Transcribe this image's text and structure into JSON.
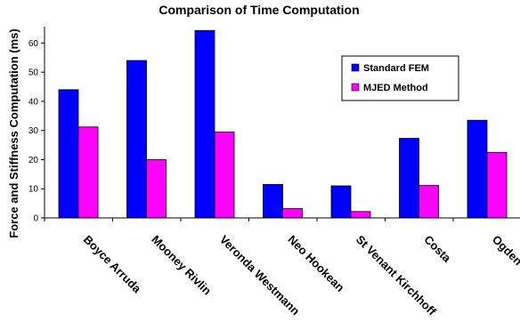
{
  "chart_data": {
    "type": "bar",
    "title": "Comparison of Time Computation",
    "xlabel": "",
    "ylabel": "Force and Stiffness Computation (ms)",
    "ylim": [
      0,
      65
    ],
    "yticks": [
      0,
      10,
      20,
      30,
      40,
      50,
      60
    ],
    "grid": false,
    "legend_position": "top-right",
    "categories": [
      "Boyce Arruda",
      "Mooney Rivlin",
      "Veronda Westmann",
      "Neo Hookean",
      "St Venant Kirchhoff",
      "Costa",
      "Ogden"
    ],
    "series": [
      {
        "name": "Standard FEM",
        "color": "#0000ff",
        "values": [
          44,
          54,
          64.3,
          11.5,
          11,
          27.3,
          33.5
        ]
      },
      {
        "name": "MJED Method",
        "color": "#ff00ff",
        "values": [
          31.2,
          20,
          29.5,
          3.2,
          2.2,
          11.2,
          22.5
        ]
      }
    ]
  }
}
